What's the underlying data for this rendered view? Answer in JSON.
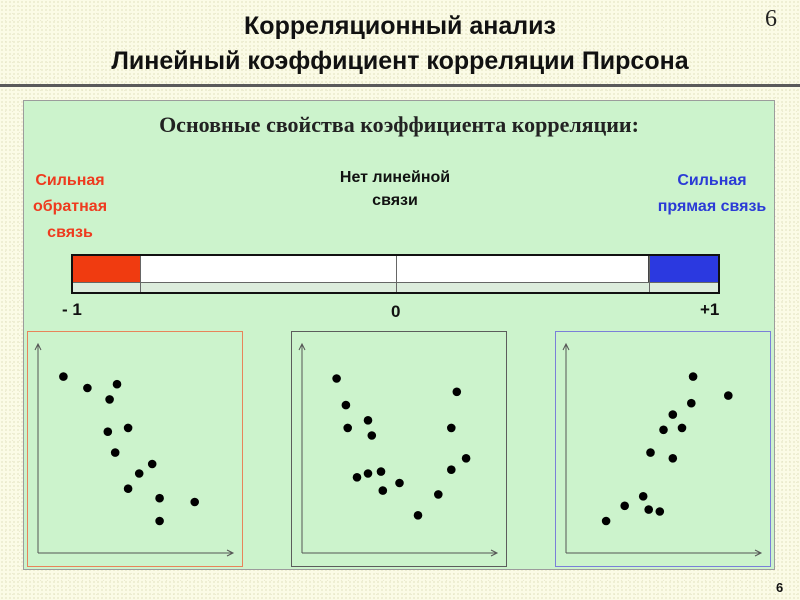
{
  "header": {
    "title_line1": "Корреляционный анализ",
    "title_line2": "Линейный коэффициент корреляции Пирсона",
    "slide_number_top": "6"
  },
  "panel": {
    "subtitle": "Основные свойства коэффициента корреляции:",
    "labels": {
      "strong_negative": "Сильная обратная связь",
      "no_linear": "Нет линейной связи",
      "strong_positive": "Сильная прямая связь"
    },
    "scale": {
      "tick_labels": [
        "- 1",
        "0",
        "+1"
      ],
      "colors": {
        "negative": "#f03b10",
        "positive": "#2b39e0"
      }
    }
  },
  "chart_data": [
    {
      "type": "scatter",
      "title": "",
      "xlabel": "",
      "ylabel": "",
      "xlim": [
        0,
        10
      ],
      "ylim": [
        0,
        10
      ],
      "frame_color": "#e8835a",
      "points": [
        [
          1.1,
          8.6
        ],
        [
          2.4,
          8.0
        ],
        [
          3.6,
          7.4
        ],
        [
          4.0,
          8.2
        ],
        [
          3.5,
          5.7
        ],
        [
          4.6,
          5.9
        ],
        [
          3.9,
          4.6
        ],
        [
          5.9,
          4.0
        ],
        [
          5.2,
          3.5
        ],
        [
          4.6,
          2.7
        ],
        [
          6.3,
          2.2
        ],
        [
          8.2,
          2.0
        ],
        [
          6.3,
          1.0
        ]
      ]
    },
    {
      "type": "scatter",
      "title": "",
      "xlabel": "",
      "ylabel": "",
      "xlim": [
        0,
        10
      ],
      "ylim": [
        0,
        10
      ],
      "frame_color": "#5c5c5c",
      "points": [
        [
          1.6,
          8.5
        ],
        [
          2.1,
          7.1
        ],
        [
          3.3,
          6.3
        ],
        [
          2.2,
          5.9
        ],
        [
          3.5,
          5.5
        ],
        [
          8.1,
          7.8
        ],
        [
          7.8,
          5.9
        ],
        [
          2.7,
          3.3
        ],
        [
          3.3,
          3.5
        ],
        [
          4.0,
          3.6
        ],
        [
          5.0,
          3.0
        ],
        [
          4.1,
          2.6
        ],
        [
          7.8,
          3.7
        ],
        [
          8.6,
          4.3
        ],
        [
          7.1,
          2.4
        ],
        [
          6.0,
          1.3
        ]
      ]
    },
    {
      "type": "scatter",
      "title": "",
      "xlabel": "",
      "ylabel": "",
      "xlim": [
        0,
        10
      ],
      "ylim": [
        0,
        10
      ],
      "frame_color": "#7a7fd8",
      "points": [
        [
          6.6,
          8.6
        ],
        [
          8.5,
          7.6
        ],
        [
          6.5,
          7.2
        ],
        [
          5.5,
          6.6
        ],
        [
          6.0,
          5.9
        ],
        [
          5.0,
          5.8
        ],
        [
          4.3,
          4.6
        ],
        [
          5.5,
          4.3
        ],
        [
          2.9,
          1.8
        ],
        [
          3.9,
          2.3
        ],
        [
          4.2,
          1.6
        ],
        [
          4.8,
          1.5
        ],
        [
          1.9,
          1.0
        ]
      ]
    }
  ]
}
